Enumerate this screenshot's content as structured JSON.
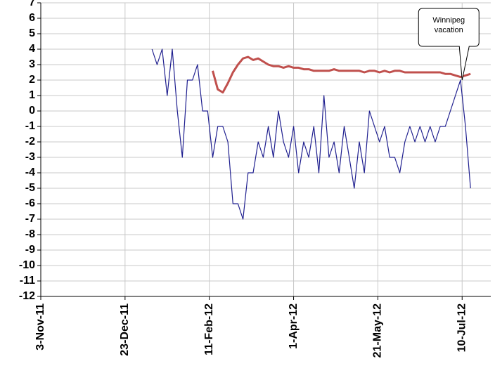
{
  "chart_data": {
    "type": "line",
    "x": [
      "2012-01-08",
      "2012-01-11",
      "2012-01-14",
      "2012-01-17",
      "2012-01-20",
      "2012-01-23",
      "2012-01-26",
      "2012-01-29",
      "2012-02-01",
      "2012-02-04",
      "2012-02-07",
      "2012-02-10",
      "2012-02-13",
      "2012-02-16",
      "2012-02-19",
      "2012-02-22",
      "2012-02-25",
      "2012-02-28",
      "2012-03-02",
      "2012-03-05",
      "2012-03-08",
      "2012-03-11",
      "2012-03-14",
      "2012-03-17",
      "2012-03-20",
      "2012-03-23",
      "2012-03-26",
      "2012-03-29",
      "2012-04-01",
      "2012-04-04",
      "2012-04-07",
      "2012-04-10",
      "2012-04-13",
      "2012-04-16",
      "2012-04-19",
      "2012-04-22",
      "2012-04-25",
      "2012-04-28",
      "2012-05-01",
      "2012-05-04",
      "2012-05-07",
      "2012-05-10",
      "2012-05-13",
      "2012-05-16",
      "2012-05-19",
      "2012-05-22",
      "2012-05-25",
      "2012-05-28",
      "2012-05-31",
      "2012-06-03",
      "2012-06-06",
      "2012-06-09",
      "2012-06-12",
      "2012-06-15",
      "2012-06-18",
      "2012-06-21",
      "2012-06-24",
      "2012-06-27",
      "2012-06-30",
      "2012-07-03",
      "2012-07-06",
      "2012-07-09",
      "2012-07-12",
      "2012-07-15"
    ],
    "series": [
      {
        "color": "#1f1f8f",
        "values": [
          4,
          3,
          4,
          1,
          4,
          0,
          -3,
          2,
          2,
          3,
          0,
          0,
          -3,
          -1,
          -1,
          -2,
          -6,
          -6,
          -7,
          -4,
          -4,
          -2,
          -3,
          -1,
          -3,
          0,
          -2,
          -3,
          -1,
          -4,
          -2,
          -3,
          -1,
          -4,
          1,
          -3,
          -2,
          -4,
          -1,
          -3,
          -5,
          -2,
          -4,
          0,
          -1,
          -2,
          -1,
          -3,
          -3,
          -4,
          -2,
          -1,
          -2,
          -1,
          -2,
          -1,
          -2,
          -1,
          -1,
          0,
          1,
          2,
          -1,
          -5
        ]
      },
      {
        "color": "#c0504d",
        "values": [
          null,
          null,
          null,
          null,
          null,
          null,
          null,
          null,
          null,
          null,
          null,
          null,
          2.6,
          1.4,
          1.2,
          1.8,
          2.5,
          3.0,
          3.4,
          3.5,
          3.3,
          3.4,
          3.2,
          3.0,
          2.9,
          2.9,
          2.8,
          2.9,
          2.8,
          2.8,
          2.7,
          2.7,
          2.6,
          2.6,
          2.6,
          2.6,
          2.7,
          2.6,
          2.6,
          2.6,
          2.6,
          2.6,
          2.5,
          2.6,
          2.6,
          2.5,
          2.6,
          2.5,
          2.6,
          2.6,
          2.5,
          2.5,
          2.5,
          2.5,
          2.5,
          2.5,
          2.5,
          2.5,
          2.4,
          2.4,
          2.3,
          2.2,
          2.3,
          2.4
        ]
      }
    ],
    "xlim": [
      "2011-11-03",
      "2012-07-27"
    ],
    "xticks": [
      {
        "value": "2011-11-03",
        "label": "3-Nov-11"
      },
      {
        "value": "2011-12-23",
        "label": "23-Dec-11"
      },
      {
        "value": "2012-02-11",
        "label": "11-Feb-12"
      },
      {
        "value": "2012-04-01",
        "label": "1-Apr-12"
      },
      {
        "value": "2012-05-21",
        "label": "21-May-12"
      },
      {
        "value": "2012-07-10",
        "label": "10-Jul-12"
      }
    ],
    "ylim": [
      -12,
      7
    ],
    "yticks": [
      -12,
      -11,
      -10,
      -9,
      -8,
      -7,
      -6,
      -5,
      -4,
      -3,
      -2,
      -1,
      0,
      1,
      2,
      3,
      4,
      5,
      6,
      7
    ],
    "grid": true,
    "annotation": {
      "text": "Winnipeg vacation",
      "x": "2012-07-10",
      "y": 2
    }
  }
}
